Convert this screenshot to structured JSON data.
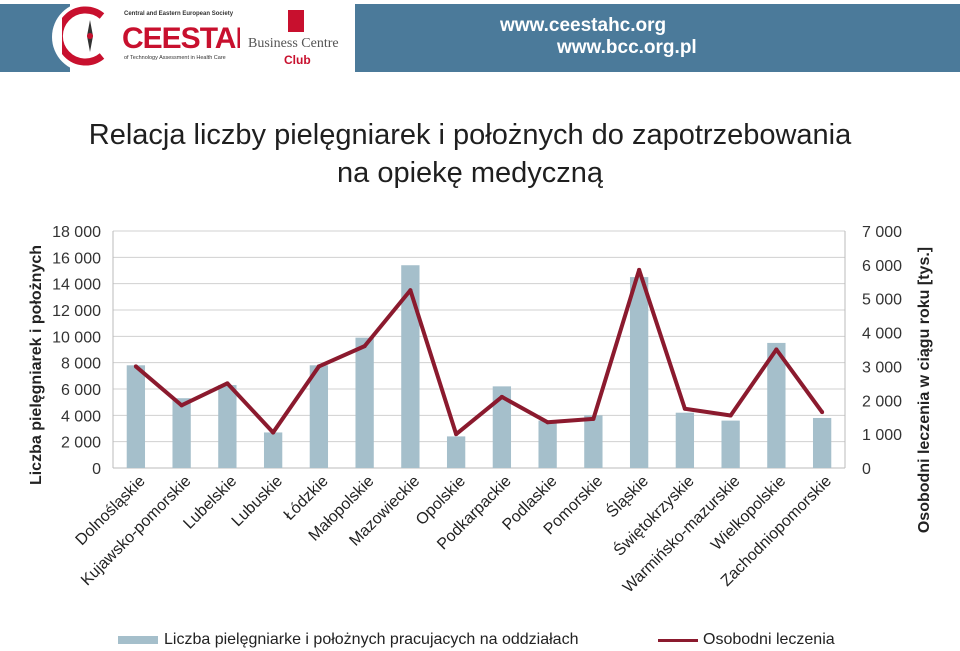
{
  "header": {
    "logo1": {
      "top_text": "Central and Eastern European Society",
      "word": "CEESTAHC",
      "bottom_text": "of Technology Assessment in Health Care"
    },
    "logo2": {
      "text": "Business Centre",
      "club": "Club"
    },
    "url1": "www.ceestahc.org",
    "url2": "www.bcc.org.pl",
    "band_color": "#4b7a9a"
  },
  "title_line1": "Relacja liczby pielęgniarek i położnych do zapotrzebowania",
  "title_line2": "na opiekę medyczną",
  "chart_data": {
    "type": "bar",
    "categories": [
      "Dolnośląskie",
      "Kujawsko-pomorskie",
      "Lubelskie",
      "Lubuskie",
      "Łódzkie",
      "Małopolskie",
      "Mazowieckie",
      "Opolskie",
      "Podkarpackie",
      "Podlaskie",
      "Pomorskie",
      "Śląskie",
      "Świętokrzyskie",
      "Warmińsko-mazurskie",
      "Wielkopolskie",
      "Zachodniopomorskie"
    ],
    "series": [
      {
        "name": "Liczba pielęgniarke i położnych pracujacych na oddziałach",
        "type": "bar",
        "axis": "left",
        "color": "#a5bfcb",
        "values": [
          7800,
          5300,
          6300,
          2700,
          7800,
          9900,
          15400,
          2400,
          6200,
          3600,
          4000,
          14500,
          4200,
          3600,
          9500,
          3800
        ]
      },
      {
        "name": "Osobodni leczenia",
        "type": "line",
        "axis": "right",
        "color": "#8b1a2e",
        "values": [
          3000,
          1850,
          2500,
          1050,
          3000,
          3600,
          5250,
          1000,
          2100,
          1350,
          1450,
          5850,
          1750,
          1550,
          3500,
          1650
        ]
      }
    ],
    "ylabel_left": "Liczba pielęgniarek  i położnych",
    "ylabel_right": "Osobodni leczenia  w ciągu roku [tys.]",
    "ylim_left": [
      0,
      18000
    ],
    "ylim_right": [
      0,
      7000
    ],
    "yticks_left": [
      "0",
      "2 000",
      "4 000",
      "6 000",
      "8 000",
      "10 000",
      "12 000",
      "14 000",
      "16 000",
      "18 000"
    ],
    "yticks_right": [
      "0",
      "1 000",
      "2 000",
      "3 000",
      "4 000",
      "5 000",
      "6 000",
      "7 000"
    ],
    "grid": true,
    "legend_position": "bottom"
  }
}
